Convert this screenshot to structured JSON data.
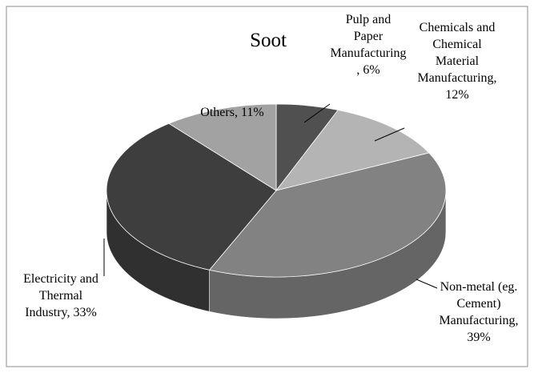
{
  "chart_data": {
    "type": "pie3d",
    "title": "Soot",
    "categories": [
      "Pulp and Paper Manufacturing",
      "Chemicals and Chemical Material Manufacturing",
      "Non-metal (eg. Cement) Manufacturing",
      "Electricity and Thermal Industry",
      "Others"
    ],
    "values": [
      6,
      12,
      39,
      33,
      11
    ],
    "value_labels": [
      "6%",
      "12%",
      "39%",
      "33%",
      "11%"
    ],
    "colors": [
      "#505050",
      "#b4b4b4",
      "#828282",
      "#3e3e3e",
      "#a2a2a2"
    ]
  }
}
